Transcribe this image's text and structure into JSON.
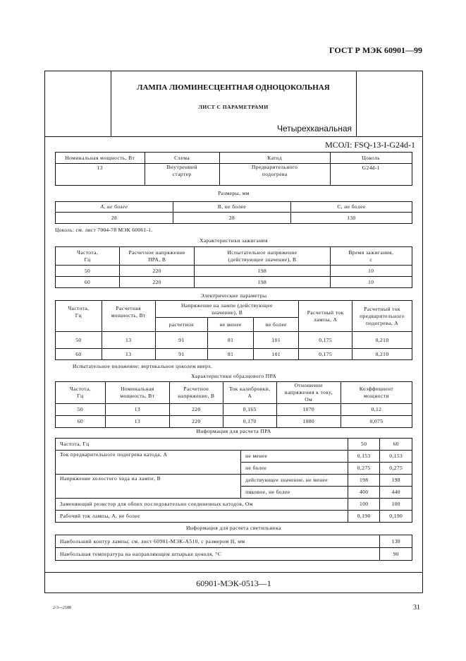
{
  "running_header": "ГОСТ Р МЭК 60901—99",
  "title": "ЛАМПА ЛЮМИНЕСЦЕНТНАЯ ОДНОЦОКОЛЬНАЯ",
  "subtitle": "ЛИСТ С ПАРАМЕТРАМИ",
  "type": "Четырехканальная",
  "designation": "МСОЛ: FSQ-13-I-G24d-1",
  "t1": {
    "h": [
      "Номинальная мощность, Вт",
      "Схема",
      "Катод",
      "Цоколь"
    ],
    "r": [
      "13",
      "Внутренний стартер",
      "Предварительного подогрева",
      "G24d-1"
    ]
  },
  "dims_caption": "Размеры, мм",
  "t2": {
    "h": [
      "A, не более",
      "B, не более",
      "C, не более"
    ],
    "r": [
      "28",
      "28",
      "130"
    ]
  },
  "base_note": "Цоколь: см. лист 7004-78 МЭК 60061-1.",
  "ign_caption": "Характеристики зажигания",
  "t3": {
    "h": [
      "Частота, Гц",
      "Расчетное напряжение ПРА, В",
      "Испытательное напряжение (действующее значение), В",
      "Время зажигания, с"
    ],
    "rows": [
      [
        "50",
        "220",
        "198",
        "10"
      ],
      [
        "60",
        "220",
        "198",
        "10"
      ]
    ]
  },
  "el_caption": "Электрические параметры",
  "t4": {
    "h": [
      "Частота, Гц",
      "Расчетная мощность, Вт",
      "Напряжение на лампе (действующее значение), В",
      "Расчетный ток лампы, А",
      "Расчетный ток предварительного подогрева, А"
    ],
    "sub": [
      "расчетное",
      "не менее",
      "не более"
    ],
    "rows": [
      [
        "50",
        "13",
        "91",
        "81",
        "101",
        "0,175",
        "0,210"
      ],
      [
        "60",
        "13",
        "91",
        "81",
        "101",
        "0,175",
        "0,210"
      ]
    ]
  },
  "test_note": "Испытательное положение: вертикальное цоколем вверх.",
  "ref_caption": "Характеристики образцового ПРА",
  "t5": {
    "h": [
      "Частота, Гц",
      "Номинальная мощность, Вт",
      "Расчетное напряжение, В",
      "Ток калибровки, А",
      "Отношение напряжения к току, Ом",
      "Коэффициент мощности"
    ],
    "rows": [
      [
        "50",
        "13",
        "220",
        "0,165",
        "1070",
        "0,12"
      ],
      [
        "60",
        "13",
        "220",
        "0,170",
        "1080",
        "0,075"
      ]
    ]
  },
  "pra_caption": "Информация для расчета ПРА",
  "t6": {
    "freq": "Частота, Гц",
    "f1": "50",
    "f2": "60",
    "preheat": "Ток предварительного подогрева катода, А",
    "min": "не менее",
    "max": "не более",
    "ph_min": [
      "0,153",
      "0,153"
    ],
    "ph_max": [
      "0,275",
      "0,275"
    ],
    "ocv": "Напряжение холостого хода на лампе, В",
    "rms": "действующее значение, не менее",
    "peak": "пиковое, не более",
    "ocv_rms": [
      "198",
      "198"
    ],
    "ocv_peak": [
      "400",
      "440"
    ],
    "res": "Заменяющий резистор для обоих последовательно соединенных катодов, Ом",
    "res_v": [
      "100",
      "100"
    ],
    "cur": "Рабочий ток лампы, А, не более",
    "cur_v": [
      "0,190",
      "0,190"
    ]
  },
  "lum_caption": "Информация для расчета светильника",
  "t7": {
    "r1": "Наибольший контур лампы: см. лист 60901-МЭК-А510, с размером H, мм",
    "v1": "130",
    "r2": "Наибольшая температура на направляющем штырьке цоколя, °С",
    "v2": "90"
  },
  "sheet_number": "60901-МЭК-0513—1",
  "print_code": "2-3—2188",
  "page_number": "31"
}
